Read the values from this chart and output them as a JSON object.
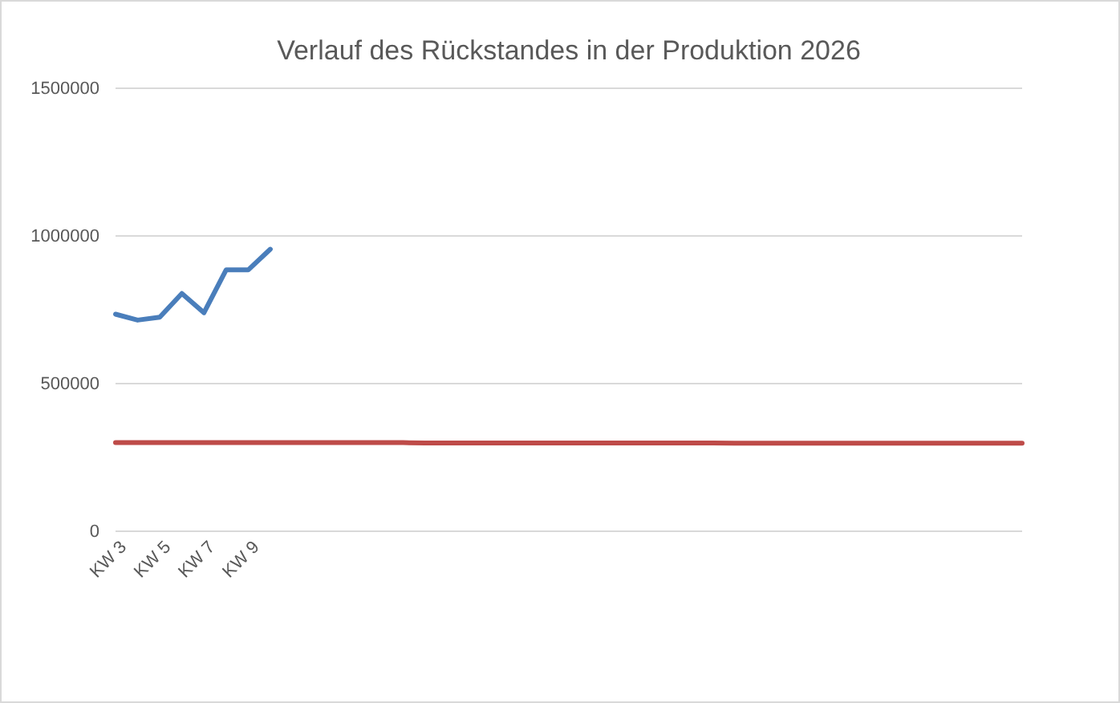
{
  "chart_data": {
    "type": "line",
    "title": "Verlauf des Rückstandes in der Produktion 2026",
    "categories": [
      "KW 3",
      null,
      "KW 5",
      null,
      "KW 7",
      null,
      "KW 9",
      null,
      null,
      null,
      null,
      null,
      null,
      null,
      null,
      null,
      null,
      null,
      null,
      null,
      null,
      null,
      null,
      null,
      null,
      null,
      null,
      null,
      null,
      null,
      null,
      null,
      null,
      null,
      null,
      null,
      null,
      null,
      null,
      null,
      null,
      null
    ],
    "series": [
      {
        "color": "#4a7ebb",
        "values": [
          735000,
          715000,
          725000,
          805000,
          740000,
          885000,
          885000,
          955000,
          null,
          null,
          null,
          null,
          null,
          null,
          null,
          null,
          null,
          null,
          null,
          null,
          null,
          null,
          null,
          null,
          null,
          null,
          null,
          null,
          null,
          null,
          null,
          null,
          null,
          null,
          null,
          null,
          null,
          null,
          null,
          null,
          null,
          null
        ]
      },
      {
        "color": "#be4b48",
        "values": [
          300000,
          300000,
          300000,
          300000,
          300000,
          300000,
          300000,
          300000,
          300000,
          300000,
          300000,
          300000,
          300000,
          300000,
          299000,
          299000,
          299000,
          299000,
          299000,
          299000,
          299000,
          299000,
          299000,
          299000,
          299000,
          299000,
          299000,
          299000,
          298000,
          298000,
          298000,
          298000,
          298000,
          298000,
          298000,
          298000,
          298000,
          298000,
          298000,
          298000,
          298000,
          298000
        ]
      }
    ],
    "ylim": [
      0,
      1500000
    ],
    "yticks": [
      0,
      500000,
      1000000,
      1500000
    ],
    "grid": "y"
  }
}
